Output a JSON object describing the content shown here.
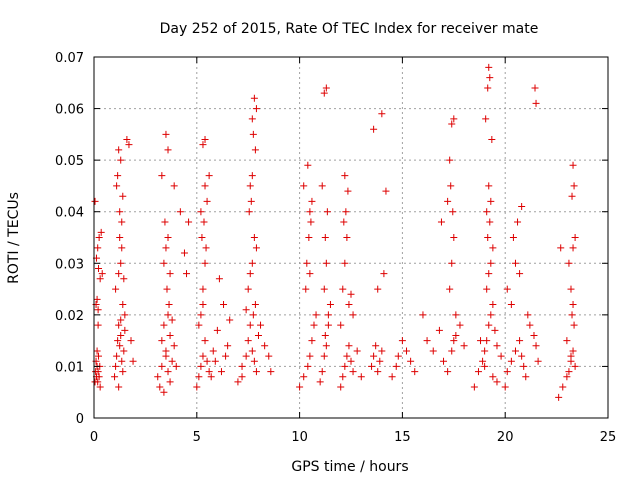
{
  "chart_data": {
    "type": "scatter",
    "title": "Day 252 of 2015, Rate Of TEC Index for receiver mate",
    "xlabel": "GPS time / hours",
    "ylabel": "ROTI / TECUs",
    "xlim": [
      0,
      25
    ],
    "ylim": [
      0,
      0.07
    ],
    "xticks": [
      0,
      5,
      10,
      15,
      20,
      25
    ],
    "yticks": [
      0,
      0.01,
      0.02,
      0.03,
      0.04,
      0.05,
      0.06,
      0.07
    ],
    "xtick_labels": [
      "0",
      "5",
      "10",
      "15",
      "20",
      "25"
    ],
    "ytick_labels": [
      "0",
      "0.01",
      "0.02",
      "0.03",
      "0.04",
      "0.05",
      "0.06",
      "0.07"
    ],
    "grid": true,
    "legend": "none",
    "marker": "plus",
    "marker_color": "#dd0000",
    "series": [
      {
        "x": [
          0.05,
          0.08,
          0.1,
          0.12,
          0.15,
          0.18,
          0.2,
          0.22,
          0.25,
          0.28,
          0.3,
          0.1,
          0.15,
          0.2,
          0.12,
          0.18,
          0.22,
          0.05,
          0.25,
          0.3,
          0.35,
          0.4,
          0.15,
          0.2,
          1.0,
          1.05,
          1.1,
          1.15,
          1.2,
          1.25,
          1.3,
          1.35,
          1.4,
          1.45,
          1.5,
          1.1,
          1.2,
          1.3,
          1.4,
          1.15,
          1.25,
          1.35,
          1.05,
          1.2,
          1.3,
          1.4,
          1.5,
          1.25,
          1.35,
          1.45,
          1.6,
          1.7,
          1.2,
          1.3,
          1.8,
          1.9,
          3.1,
          3.2,
          3.3,
          3.4,
          3.5,
          3.6,
          3.7,
          3.8,
          3.9,
          4.0,
          3.3,
          3.5,
          3.7,
          3.4,
          3.6,
          3.45,
          3.55,
          3.65,
          3.5,
          3.7,
          3.4,
          3.6,
          3.8,
          3.3,
          3.6,
          4.2,
          4.4,
          4.5,
          4.6,
          3.5,
          3.9,
          5.0,
          5.1,
          5.2,
          5.3,
          5.4,
          5.5,
          5.6,
          5.2,
          5.3,
          5.4,
          5.25,
          5.35,
          5.45,
          5.2,
          5.3,
          5.1,
          5.4,
          5.5,
          5.6,
          5.8,
          6.0,
          6.2,
          6.4,
          6.6,
          6.5,
          6.3,
          6.1,
          5.9,
          5.7,
          5.3,
          5.4,
          7.0,
          7.2,
          7.4,
          7.5,
          7.6,
          7.7,
          7.8,
          7.9,
          8.0,
          7.5,
          7.6,
          7.7,
          7.8,
          7.9,
          7.55,
          7.65,
          7.75,
          7.85,
          7.7,
          7.8,
          7.9,
          7.6,
          7.7,
          7.75,
          7.85,
          8.1,
          8.3,
          8.5,
          8.6,
          7.4,
          7.2,
          10.0,
          10.2,
          10.4,
          10.5,
          10.6,
          10.7,
          10.8,
          10.3,
          10.5,
          10.45,
          10.55,
          10.35,
          10.5,
          10.6,
          10.2,
          10.4,
          11.0,
          11.1,
          11.2,
          11.3,
          11.4,
          11.5,
          11.2,
          11.3,
          11.25,
          11.35,
          11.1,
          11.2,
          11.3,
          11.4,
          11.25,
          12.0,
          12.1,
          12.2,
          12.3,
          12.4,
          12.5,
          12.6,
          12.8,
          13.0,
          12.1,
          12.2,
          12.3,
          12.15,
          12.25,
          12.35,
          12.2,
          12.0,
          12.4,
          12.6,
          12.5,
          13.5,
          13.6,
          13.7,
          13.8,
          13.9,
          14.0,
          13.8,
          14.1,
          13.6,
          14.0,
          14.2,
          14.5,
          14.7,
          14.8,
          15.0,
          15.2,
          15.4,
          15.6,
          16.0,
          16.2,
          16.5,
          16.8,
          17.0,
          17.2,
          17.4,
          17.5,
          17.6,
          17.3,
          17.4,
          17.5,
          17.45,
          17.35,
          17.5,
          17.4,
          17.3,
          17.2,
          16.9,
          17.6,
          17.8,
          18.0,
          18.5,
          18.7,
          18.9,
          19.0,
          19.1,
          19.2,
          19.3,
          19.4,
          19.5,
          19.6,
          19.1,
          19.2,
          19.3,
          19.15,
          19.25,
          19.2,
          19.1,
          19.3,
          19.4,
          19.2,
          19.25,
          19.15,
          19.05,
          19.35,
          19.6,
          19.8,
          18.8,
          19.0,
          19.4,
          20.0,
          20.1,
          20.3,
          20.5,
          20.7,
          20.8,
          20.9,
          21.0,
          21.2,
          21.4,
          21.5,
          21.6,
          21.45,
          21.5,
          20.4,
          20.6,
          20.8,
          20.1,
          20.3,
          20.5,
          20.7,
          21.1,
          22.6,
          22.8,
          23.0,
          23.1,
          23.2,
          23.3,
          23.4,
          23.25,
          23.35,
          23.3,
          23.2,
          23.1,
          23.3,
          23.4,
          23.35,
          23.25,
          22.7,
          23.0,
          23.2,
          23.3
        ],
        "y": [
          0.007,
          0.009,
          0.011,
          0.008,
          0.01,
          0.007,
          0.009,
          0.012,
          0.008,
          0.01,
          0.006,
          0.022,
          0.023,
          0.021,
          0.031,
          0.033,
          0.029,
          0.042,
          0.035,
          0.027,
          0.036,
          0.028,
          0.013,
          0.018,
          0.008,
          0.01,
          0.012,
          0.015,
          0.018,
          0.014,
          0.016,
          0.011,
          0.009,
          0.013,
          0.017,
          0.045,
          0.052,
          0.05,
          0.043,
          0.047,
          0.04,
          0.038,
          0.025,
          0.028,
          0.03,
          0.022,
          0.02,
          0.035,
          0.033,
          0.027,
          0.054,
          0.053,
          0.006,
          0.019,
          0.015,
          0.011,
          0.008,
          0.006,
          0.01,
          0.005,
          0.012,
          0.009,
          0.007,
          0.011,
          0.014,
          0.01,
          0.015,
          0.013,
          0.016,
          0.03,
          0.035,
          0.038,
          0.025,
          0.022,
          0.033,
          0.028,
          0.018,
          0.02,
          0.019,
          0.047,
          0.052,
          0.04,
          0.032,
          0.028,
          0.038,
          0.055,
          0.045,
          0.006,
          0.008,
          0.01,
          0.012,
          0.015,
          0.011,
          0.009,
          0.02,
          0.025,
          0.03,
          0.035,
          0.038,
          0.033,
          0.04,
          0.022,
          0.018,
          0.045,
          0.042,
          0.047,
          0.013,
          0.017,
          0.009,
          0.012,
          0.019,
          0.014,
          0.022,
          0.027,
          0.011,
          0.008,
          0.053,
          0.054,
          0.007,
          0.01,
          0.012,
          0.015,
          0.018,
          0.013,
          0.011,
          0.009,
          0.016,
          0.025,
          0.028,
          0.03,
          0.035,
          0.033,
          0.04,
          0.042,
          0.055,
          0.052,
          0.058,
          0.062,
          0.06,
          0.045,
          0.047,
          0.02,
          0.022,
          0.018,
          0.014,
          0.012,
          0.009,
          0.021,
          0.008,
          0.006,
          0.008,
          0.01,
          0.012,
          0.015,
          0.018,
          0.02,
          0.025,
          0.028,
          0.035,
          0.038,
          0.03,
          0.04,
          0.042,
          0.045,
          0.049,
          0.007,
          0.009,
          0.012,
          0.014,
          0.018,
          0.022,
          0.025,
          0.03,
          0.035,
          0.04,
          0.045,
          0.063,
          0.064,
          0.02,
          0.016,
          0.006,
          0.008,
          0.01,
          0.012,
          0.014,
          0.011,
          0.009,
          0.013,
          0.008,
          0.025,
          0.03,
          0.035,
          0.038,
          0.04,
          0.044,
          0.047,
          0.018,
          0.022,
          0.02,
          0.024,
          0.01,
          0.012,
          0.014,
          0.009,
          0.011,
          0.013,
          0.025,
          0.028,
          0.056,
          0.059,
          0.044,
          0.008,
          0.01,
          0.012,
          0.015,
          0.013,
          0.011,
          0.009,
          0.02,
          0.015,
          0.013,
          0.017,
          0.011,
          0.009,
          0.013,
          0.015,
          0.02,
          0.025,
          0.03,
          0.035,
          0.04,
          0.045,
          0.058,
          0.057,
          0.05,
          0.042,
          0.038,
          0.016,
          0.018,
          0.014,
          0.006,
          0.009,
          0.011,
          0.013,
          0.015,
          0.018,
          0.02,
          0.022,
          0.017,
          0.014,
          0.025,
          0.028,
          0.03,
          0.035,
          0.038,
          0.045,
          0.04,
          0.042,
          0.033,
          0.068,
          0.066,
          0.064,
          0.058,
          0.054,
          0.007,
          0.012,
          0.015,
          0.01,
          0.008,
          0.006,
          0.009,
          0.011,
          0.013,
          0.015,
          0.012,
          0.01,
          0.008,
          0.018,
          0.016,
          0.014,
          0.011,
          0.064,
          0.061,
          0.035,
          0.038,
          0.041,
          0.025,
          0.022,
          0.03,
          0.028,
          0.02,
          0.004,
          0.006,
          0.008,
          0.009,
          0.011,
          0.013,
          0.01,
          0.02,
          0.018,
          0.022,
          0.025,
          0.03,
          0.033,
          0.035,
          0.045,
          0.043,
          0.033,
          0.015,
          0.012,
          0.049
        ]
      }
    ]
  }
}
